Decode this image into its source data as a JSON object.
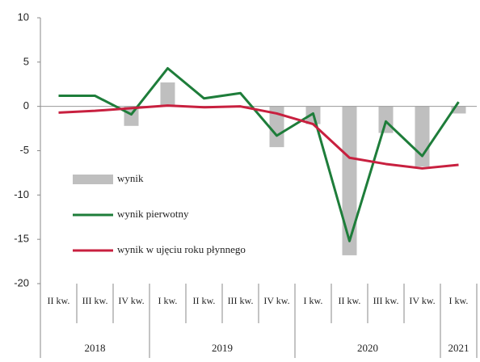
{
  "chart_data": {
    "type": "combo",
    "categories": [
      "II kw.",
      "III kw.",
      "IV kw.",
      "I kw.",
      "II kw.",
      "III kw.",
      "IV kw.",
      "I kw.",
      "II kw.",
      "III kw.",
      "IV kw.",
      "I kw."
    ],
    "groups": [
      {
        "label": "2018",
        "span": 3
      },
      {
        "label": "2019",
        "span": 4
      },
      {
        "label": "2020",
        "span": 4
      },
      {
        "label": "2021",
        "span": 1
      }
    ],
    "series": [
      {
        "name": "wynik",
        "kind": "bar",
        "color": "#bfbfbf",
        "values": [
          0,
          0,
          -2.2,
          2.7,
          0,
          0,
          -4.6,
          -2.0,
          -16.8,
          -3.0,
          -6.8,
          -0.8
        ]
      },
      {
        "name": "wynik pierwotny",
        "kind": "line",
        "color": "#1e7d3a",
        "values": [
          1.2,
          1.2,
          -0.9,
          4.3,
          0.9,
          1.5,
          -3.3,
          -0.8,
          -15.2,
          -1.7,
          -5.6,
          0.5
        ]
      },
      {
        "name": "wynik w ujęciu roku płynnego",
        "kind": "line",
        "color": "#c8203f",
        "values": [
          -0.7,
          -0.5,
          -0.2,
          0.1,
          -0.1,
          0.0,
          -0.8,
          -2.0,
          -5.8,
          -6.5,
          -7.0,
          -6.6
        ]
      }
    ],
    "ylim": [
      -20,
      10
    ],
    "yticks": [
      10,
      5,
      0,
      -5,
      -10,
      -15,
      -20
    ]
  }
}
